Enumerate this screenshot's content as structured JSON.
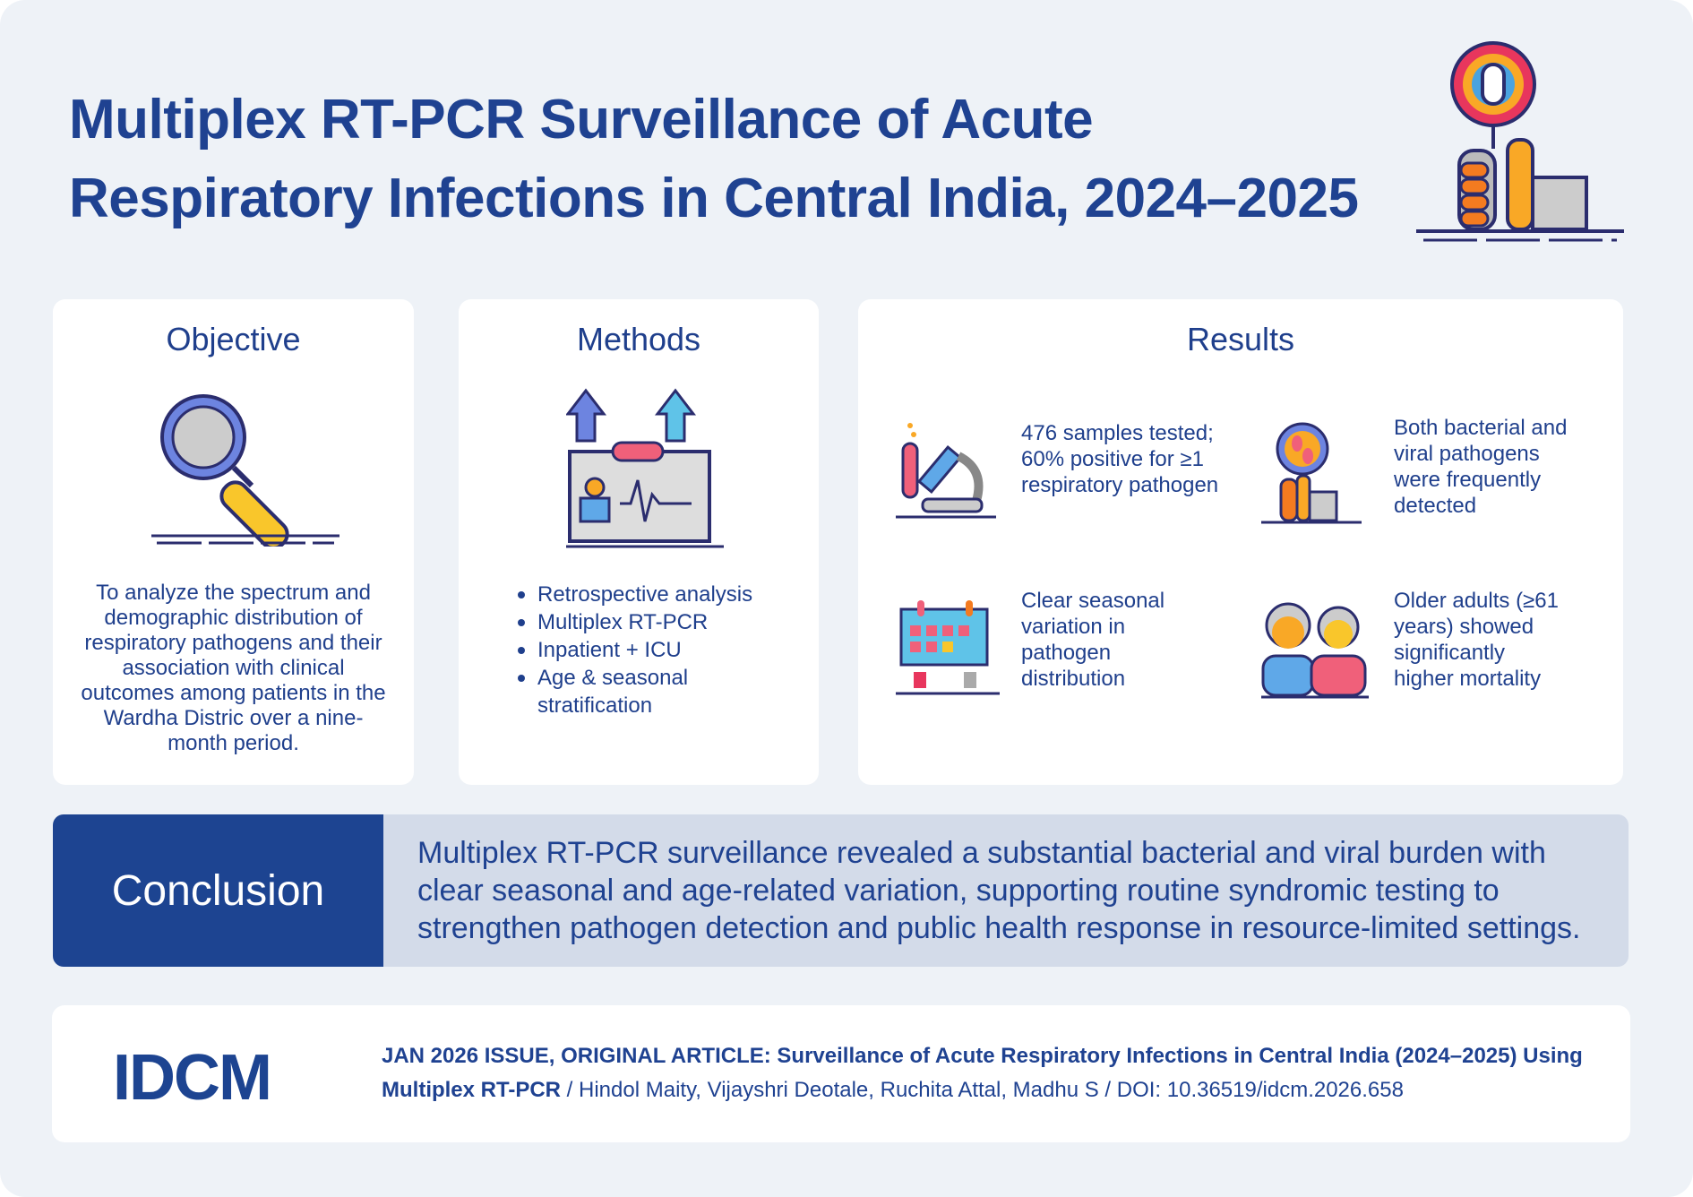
{
  "title": {
    "line1": "Multiplex RT-PCR Surveillance of Acute",
    "line2": "Respiratory Infections in Central India, 2024–2025"
  },
  "objective": {
    "heading": "Objective",
    "text": "To analyze the spectrum and demographic distribution of respiratory pathogens and their association with clinical outcomes among patients in the Wardha Distric over a nine-month period."
  },
  "methods": {
    "heading": "Methods",
    "items": [
      "Retrospective analysis",
      "Multiplex RT-PCR",
      "Inpatient + ICU",
      "Age & seasonal",
      "stratification"
    ]
  },
  "results": {
    "heading": "Results",
    "items": [
      {
        "icon": "microscope-icon",
        "lines": [
          "476 samples tested;",
          "60% positive for ≥1",
          "respiratory pathogen"
        ]
      },
      {
        "icon": "magnifier-thumbs-up-icon",
        "lines": [
          "Both bacterial and",
          "viral pathogens",
          "were frequently",
          "detected"
        ]
      },
      {
        "icon": "calendar-icon",
        "lines": [
          "Clear seasonal",
          "variation in",
          "pathogen",
          "distribution"
        ]
      },
      {
        "icon": "older-adults-icon",
        "lines": [
          "Older adults (≥61",
          "years) showed",
          "significantly",
          "higher mortality"
        ]
      }
    ]
  },
  "conclusion": {
    "label": "Conclusion",
    "text": "Multiplex RT-PCR surveillance revealed a substantial bacterial and viral burden with clear seasonal and age-related variation, supporting routine syndromic testing to strengthen pathogen detection and public health response in resource-limited settings."
  },
  "footer": {
    "logo": "IDCM",
    "bold": "JAN 2026 ISSUE, ORIGINAL ARTICLE: Surveillance of Acute Respiratory Infections in Central India (2024–2025) Using Multiplex RT-PCR",
    "rest": " / Hindol Maity, Vijayshri Deotale, Ruchita Attal, Madhu S / DOI: 10.36519/idcm.2026.658"
  },
  "colors": {
    "navy": "#1d4491",
    "background": "#eef2f7",
    "conclusion_bg": "#d3dbe9"
  }
}
